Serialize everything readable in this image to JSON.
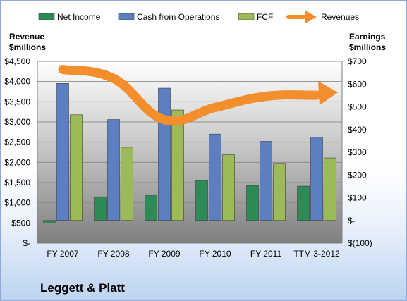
{
  "company_name": "Leggett & Platt",
  "chart_data": {
    "type": "bar",
    "categories": [
      "FY 2007",
      "FY 2008",
      "FY 2009",
      "FY 2010",
      "FY 2011",
      "TTM 3-2012"
    ],
    "left_axis": {
      "label_line1": "Revenue",
      "label_line2": "$millions",
      "ylim": [
        0,
        4500
      ],
      "ticks": [
        0,
        500,
        1000,
        1500,
        2000,
        2500,
        3000,
        3500,
        4000,
        4500
      ],
      "tick_labels": [
        "$-",
        "$500",
        "$1,000",
        "$1,500",
        "$2,000",
        "$2,500",
        "$3,000",
        "$3,500",
        "$4,000",
        "$4,500"
      ]
    },
    "right_axis": {
      "label_line1": "Earnings",
      "label_line2": "$millions",
      "ylim": [
        -100,
        700
      ],
      "ticks": [
        -100,
        0,
        100,
        200,
        300,
        400,
        500,
        600,
        700
      ],
      "tick_labels": [
        "$(100)",
        "$-",
        "$100",
        "$200",
        "$300",
        "$400",
        "$500",
        "$600",
        "$700"
      ]
    },
    "series": [
      {
        "name": "Net Income",
        "axis": "right",
        "kind": "bar",
        "color": "#2e8b57",
        "values": [
          -11,
          104,
          111,
          176,
          153,
          151
        ]
      },
      {
        "name": "Cash from Operations",
        "axis": "right",
        "kind": "bar",
        "color": "#5b7fc0",
        "values": [
          603,
          444,
          582,
          380,
          348,
          367
        ]
      },
      {
        "name": "FCF",
        "axis": "right",
        "kind": "bar",
        "color": "#9bbb59",
        "values": [
          465,
          322,
          486,
          289,
          251,
          275
        ]
      },
      {
        "name": "Revenues",
        "axis": "left",
        "kind": "line",
        "color": "#f28e2b",
        "values": [
          4300,
          4076,
          3055,
          3359,
          3636,
          3660
        ]
      }
    ],
    "grid": true,
    "legend_position": "top"
  }
}
